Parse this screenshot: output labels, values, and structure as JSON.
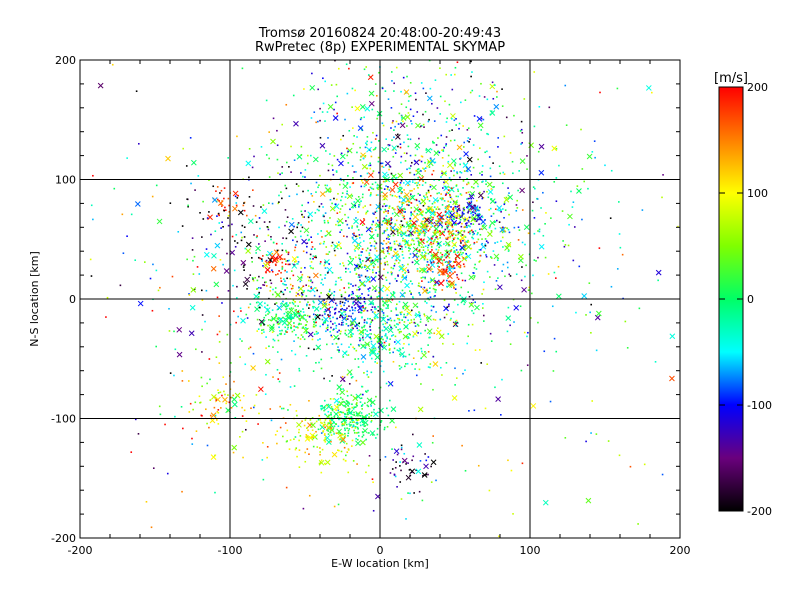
{
  "chart_data": {
    "type": "scatter",
    "title": "Tromsø 20160824 20:48:00-20:49:43",
    "subtitle": "RwPretec (8p) EXPERIMENTAL SKYMAP",
    "xlabel": "E-W location [km]",
    "ylabel": "N-S location [km]",
    "xlim": [
      -200,
      200
    ],
    "ylim": [
      -200,
      200
    ],
    "xticks": [
      "-200",
      "-100",
      "0",
      "100",
      "200"
    ],
    "yticks": [
      "-200",
      "-100",
      "0",
      "100",
      "200"
    ],
    "grid": true,
    "grid_lines_x": [
      -100,
      0,
      100
    ],
    "grid_lines_y": [
      -100,
      0,
      100
    ],
    "colorbar": {
      "label": "[m/s]",
      "min": -200,
      "max": 200,
      "ticks": [
        "200",
        "100",
        "0",
        "-100",
        "-200"
      ],
      "colormap": [
        "#000000",
        "#6a007d",
        "#0000ff",
        "#00ffff",
        "#00ff66",
        "#7fff00",
        "#ffff00",
        "#ff8000",
        "#ff0000"
      ]
    },
    "markers": [
      "cross",
      "dot"
    ],
    "clusters": [
      {
        "x": 20,
        "y": 50,
        "spread": 45,
        "n": 1400,
        "v": -20,
        "vspread": 70
      },
      {
        "x": 40,
        "y": 60,
        "spread": 14,
        "n": 260,
        "v": 60,
        "vspread": 100
      },
      {
        "x": 20,
        "y": 70,
        "spread": 20,
        "n": 160,
        "v": 120,
        "vspread": 50
      },
      {
        "x": 60,
        "y": 70,
        "spread": 6,
        "n": 60,
        "v": -120,
        "vspread": 20
      },
      {
        "x": 45,
        "y": 25,
        "spread": 8,
        "n": 60,
        "v": 180,
        "vspread": 20
      },
      {
        "x": -5,
        "y": -30,
        "spread": 18,
        "n": 260,
        "v": -10,
        "vspread": 40
      },
      {
        "x": -20,
        "y": -10,
        "spread": 10,
        "n": 100,
        "v": -110,
        "vspread": 20
      },
      {
        "x": -60,
        "y": -18,
        "spread": 10,
        "n": 160,
        "v": 0,
        "vspread": 25
      },
      {
        "x": -20,
        "y": -100,
        "spread": 10,
        "n": 240,
        "v": 0,
        "vspread": 25
      },
      {
        "x": -40,
        "y": -115,
        "spread": 15,
        "n": 140,
        "v": 100,
        "vspread": 30
      },
      {
        "x": -110,
        "y": -90,
        "spread": 15,
        "n": 80,
        "v": 130,
        "vspread": 70
      },
      {
        "x": -100,
        "y": 80,
        "spread": 6,
        "n": 30,
        "v": 180,
        "vspread": 20
      },
      {
        "x": -85,
        "y": 60,
        "spread": 25,
        "n": 80,
        "v": -200,
        "vspread": 60
      },
      {
        "x": -70,
        "y": 30,
        "spread": 5,
        "n": 30,
        "v": 180,
        "vspread": 20
      },
      {
        "x": 20,
        "y": -140,
        "spread": 10,
        "n": 50,
        "v": -150,
        "vspread": 60
      },
      {
        "x": -50,
        "y": 10,
        "spread": 35,
        "n": 300,
        "v": 0,
        "vspread": 150
      },
      {
        "x": 30,
        "y": 140,
        "spread": 40,
        "n": 300,
        "v": -40,
        "vspread": 90
      },
      {
        "x": 0,
        "y": 0,
        "spread": 120,
        "n": 500,
        "v": 0,
        "vspread": 110
      }
    ]
  }
}
